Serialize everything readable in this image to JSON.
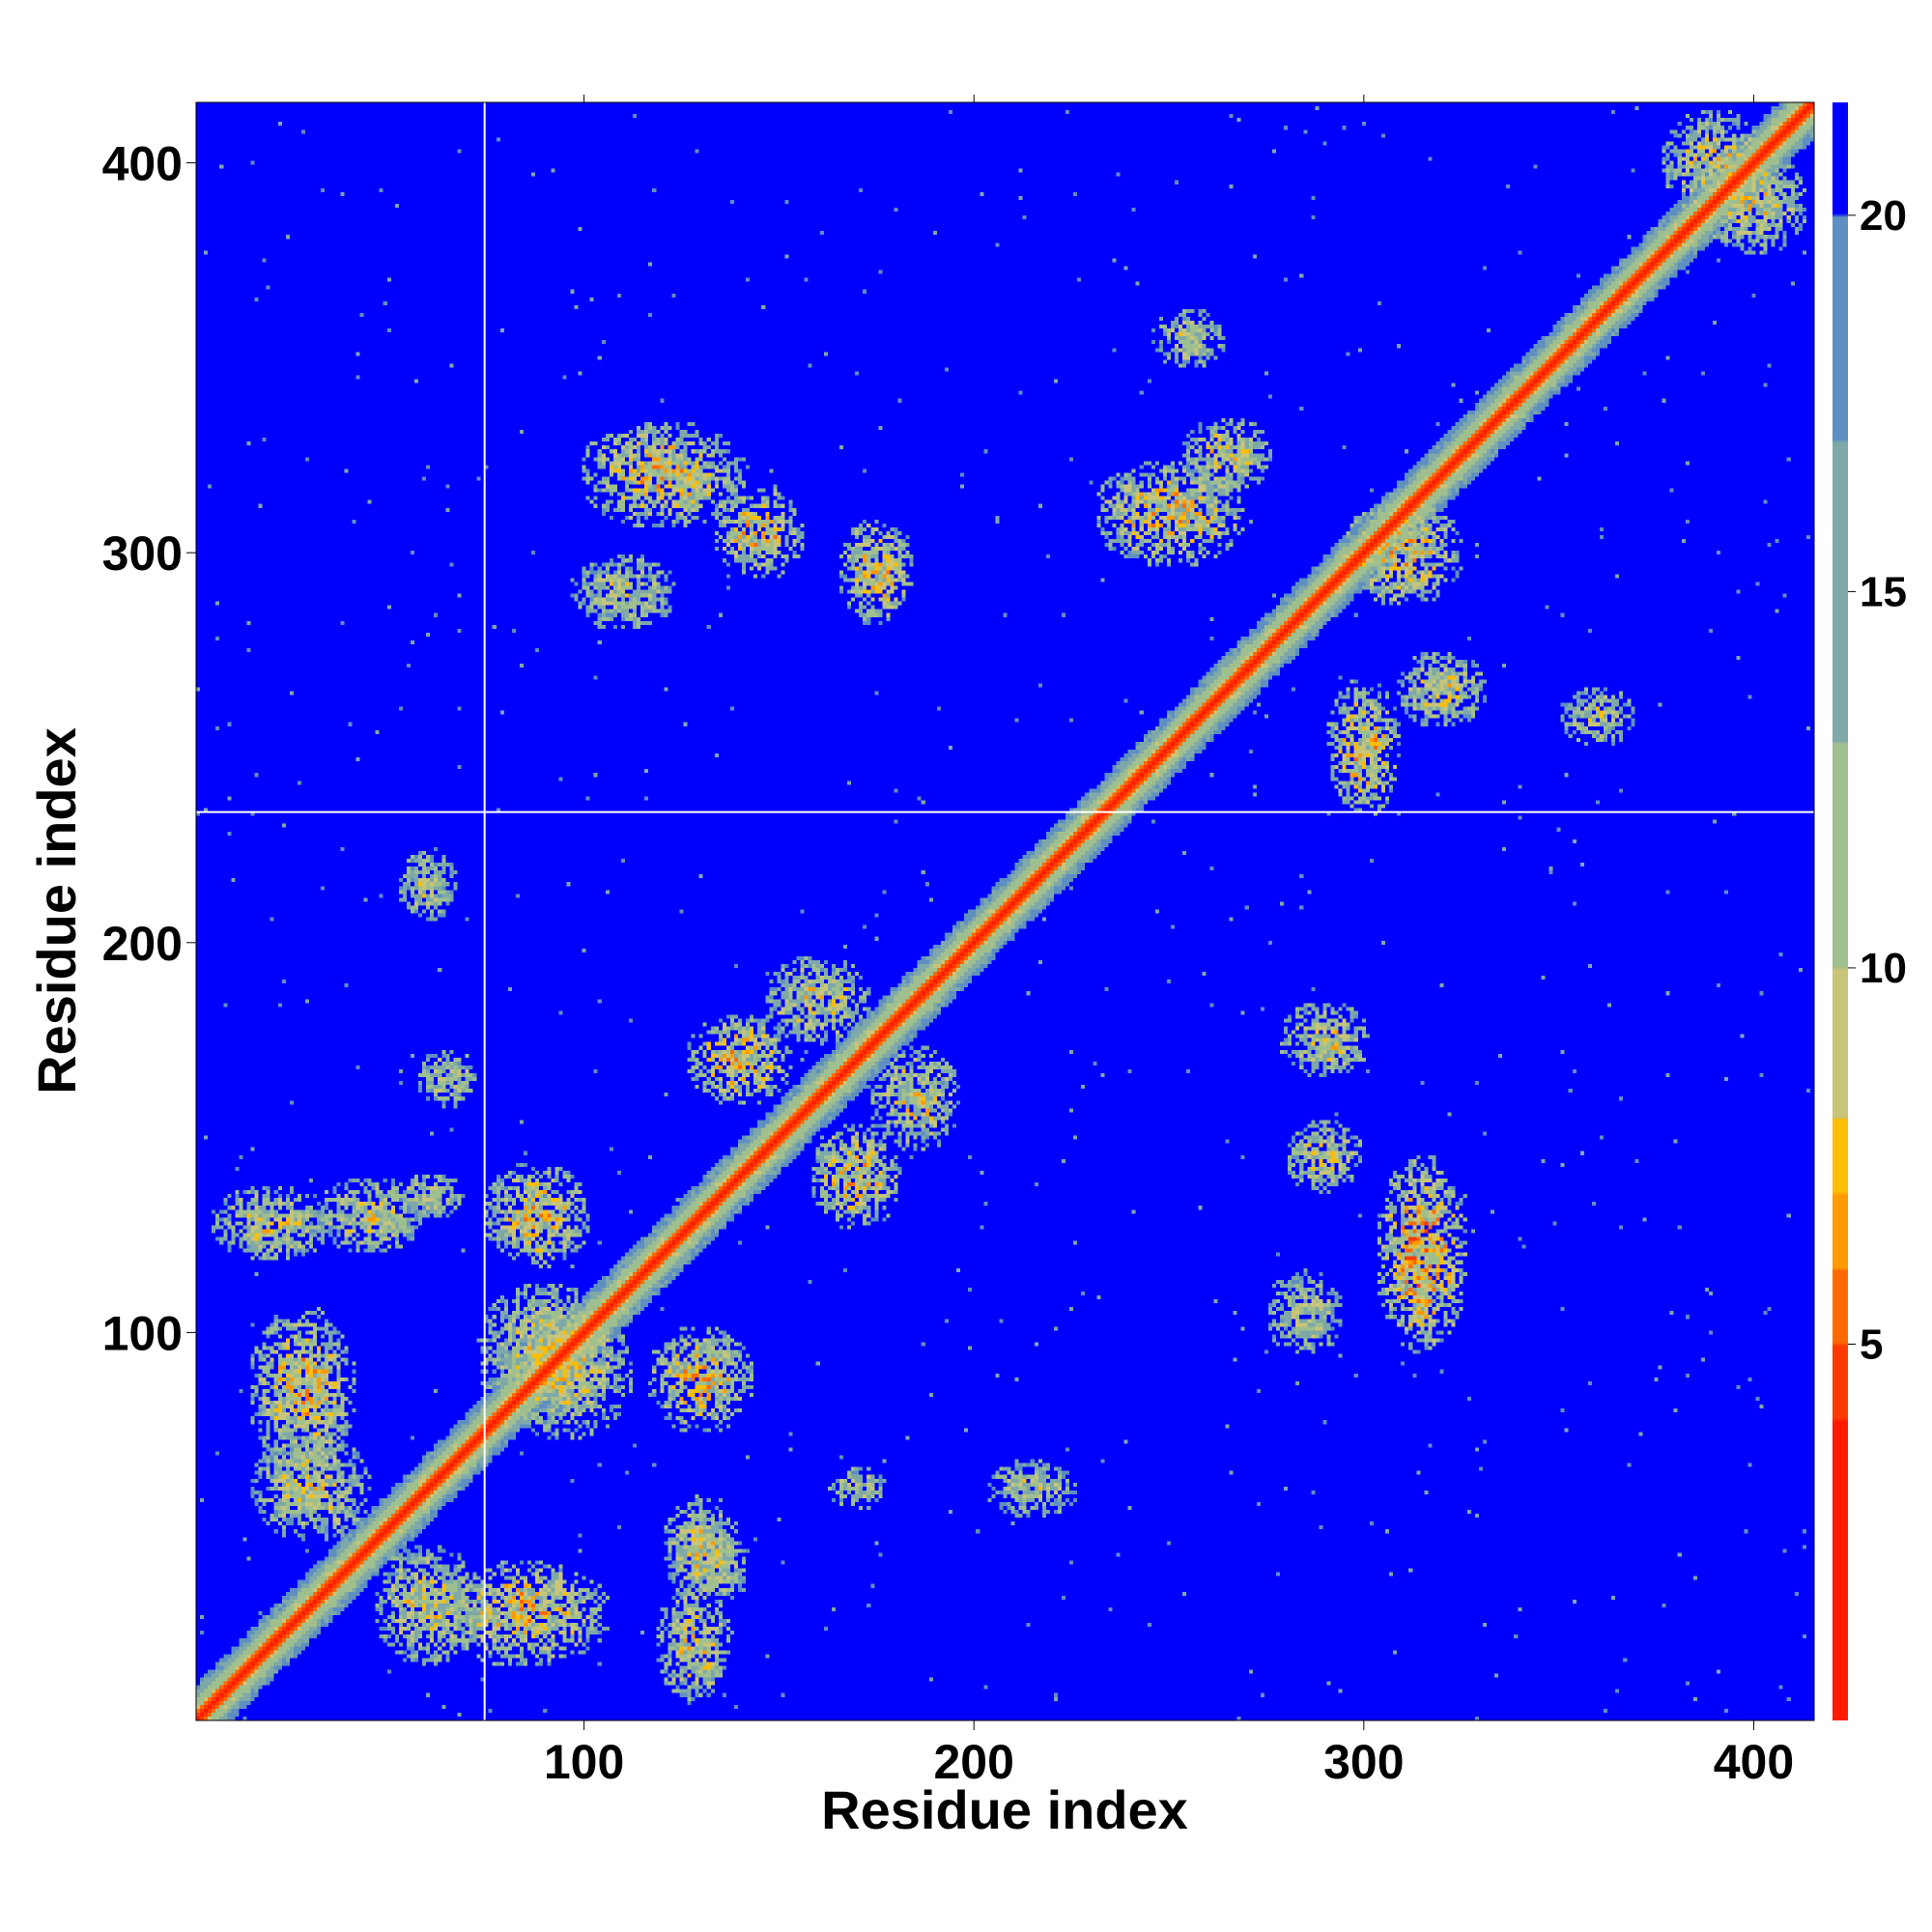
{
  "chart_data": {
    "type": "heatmap",
    "title": "",
    "xlabel": "Residue index",
    "ylabel": "Residue index",
    "xlim": [
      1,
      415
    ],
    "ylim": [
      1,
      415
    ],
    "x_ticks": [
      "100",
      "200",
      "300",
      "400"
    ],
    "y_ticks": [
      "100",
      "200",
      "300",
      "400"
    ],
    "colorbar": {
      "ticks": [
        "5",
        "10",
        "15",
        "20"
      ],
      "range": [
        0,
        21.5
      ],
      "colors": [
        "#ff1a00",
        "#ff3a00",
        "#ff6a00",
        "#ff9a00",
        "#ffbd00",
        "#c8c47a",
        "#9fbf8f",
        "#7fa8a8",
        "#5e8fc0",
        "#0000ff"
      ],
      "color_stops": [
        0,
        4,
        5,
        6,
        7,
        8,
        10,
        13,
        17,
        20,
        21.5
      ]
    },
    "domain_boundaries": [
      75,
      233
    ],
    "grid": false,
    "legend": "none",
    "background_value_color": "#0000ff",
    "diagonal_color": "#ff1a00",
    "contact_blocks": [
      {
        "x": 95,
        "y": 90,
        "sx": 18,
        "sy": 18,
        "v": 14
      },
      {
        "x": 90,
        "y": 95,
        "sx": 18,
        "sy": 18,
        "v": 14
      },
      {
        "x": 28,
        "y": 85,
        "sx": 14,
        "sy": 22,
        "v": 13
      },
      {
        "x": 85,
        "y": 28,
        "sx": 22,
        "sy": 14,
        "v": 13
      },
      {
        "x": 60,
        "y": 30,
        "sx": 14,
        "sy": 16,
        "v": 14
      },
      {
        "x": 30,
        "y": 60,
        "sx": 16,
        "sy": 14,
        "v": 14
      },
      {
        "x": 20,
        "y": 128,
        "sx": 16,
        "sy": 10,
        "v": 14
      },
      {
        "x": 128,
        "y": 20,
        "sx": 10,
        "sy": 16,
        "v": 14
      },
      {
        "x": 130,
        "y": 88,
        "sx": 14,
        "sy": 14,
        "v": 13
      },
      {
        "x": 88,
        "y": 130,
        "sx": 14,
        "sy": 14,
        "v": 13
      },
      {
        "x": 140,
        "y": 170,
        "sx": 14,
        "sy": 12,
        "v": 13
      },
      {
        "x": 170,
        "y": 140,
        "sx": 12,
        "sy": 14,
        "v": 13
      },
      {
        "x": 160,
        "y": 185,
        "sx": 14,
        "sy": 12,
        "v": 14
      },
      {
        "x": 185,
        "y": 160,
        "sx": 12,
        "sy": 14,
        "v": 14
      },
      {
        "x": 130,
        "y": 45,
        "sx": 10,
        "sy": 14,
        "v": 14
      },
      {
        "x": 45,
        "y": 130,
        "sx": 14,
        "sy": 10,
        "v": 14
      },
      {
        "x": 120,
        "y": 320,
        "sx": 22,
        "sy": 14,
        "v": 13
      },
      {
        "x": 145,
        "y": 305,
        "sx": 12,
        "sy": 12,
        "v": 13
      },
      {
        "x": 175,
        "y": 295,
        "sx": 10,
        "sy": 14,
        "v": 13
      },
      {
        "x": 110,
        "y": 290,
        "sx": 14,
        "sy": 10,
        "v": 15
      },
      {
        "x": 250,
        "y": 310,
        "sx": 20,
        "sy": 14,
        "v": 13
      },
      {
        "x": 265,
        "y": 325,
        "sx": 12,
        "sy": 10,
        "v": 14
      },
      {
        "x": 300,
        "y": 250,
        "sx": 10,
        "sy": 18,
        "v": 13
      },
      {
        "x": 320,
        "y": 265,
        "sx": 12,
        "sy": 10,
        "v": 14
      },
      {
        "x": 315,
        "y": 120,
        "sx": 12,
        "sy": 26,
        "v": 12
      },
      {
        "x": 290,
        "y": 175,
        "sx": 12,
        "sy": 10,
        "v": 14
      },
      {
        "x": 290,
        "y": 145,
        "sx": 10,
        "sy": 10,
        "v": 14
      },
      {
        "x": 285,
        "y": 105,
        "sx": 10,
        "sy": 12,
        "v": 15
      },
      {
        "x": 310,
        "y": 300,
        "sx": 16,
        "sy": 14,
        "v": 13
      },
      {
        "x": 360,
        "y": 258,
        "sx": 10,
        "sy": 8,
        "v": 15
      },
      {
        "x": 255,
        "y": 355,
        "sx": 10,
        "sy": 8,
        "v": 15
      },
      {
        "x": 60,
        "y": 215,
        "sx": 8,
        "sy": 10,
        "v": 15
      },
      {
        "x": 215,
        "y": 60,
        "sx": 12,
        "sy": 8,
        "v": 15
      },
      {
        "x": 170,
        "y": 60,
        "sx": 8,
        "sy": 6,
        "v": 15
      },
      {
        "x": 135,
        "y": 40,
        "sx": 8,
        "sy": 10,
        "v": 15
      },
      {
        "x": 400,
        "y": 390,
        "sx": 14,
        "sy": 14,
        "v": 14
      },
      {
        "x": 390,
        "y": 400,
        "sx": 14,
        "sy": 14,
        "v": 14
      },
      {
        "x": 60,
        "y": 135,
        "sx": 10,
        "sy": 6,
        "v": 15
      },
      {
        "x": 65,
        "y": 165,
        "sx": 8,
        "sy": 8,
        "v": 15
      }
    ]
  }
}
